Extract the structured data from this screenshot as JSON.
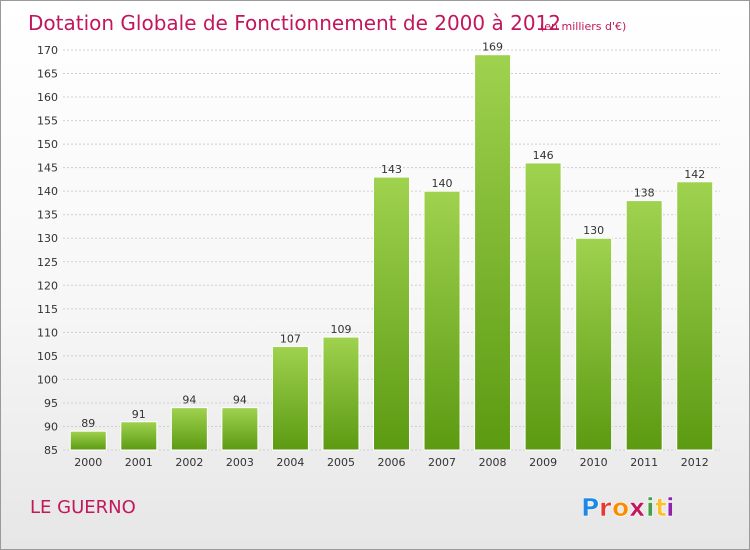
{
  "chart_data": {
    "type": "bar",
    "title": "Dotation Globale de Fonctionnement de 2000 à 2012",
    "subtitle": "(en milliers d'€)",
    "categories": [
      "2000",
      "2001",
      "2002",
      "2003",
      "2004",
      "2005",
      "2006",
      "2007",
      "2008",
      "2009",
      "2010",
      "2011",
      "2012"
    ],
    "values": [
      89,
      91,
      94,
      94,
      107,
      109,
      143,
      140,
      169,
      146,
      130,
      138,
      142
    ],
    "ylim": [
      85,
      170
    ],
    "yticks": [
      85,
      90,
      95,
      100,
      105,
      110,
      115,
      120,
      125,
      130,
      135,
      140,
      145,
      150,
      155,
      160,
      165,
      170
    ],
    "grid": true,
    "bar_color": "#7cb82f",
    "bar_color_light": "#9fd24f",
    "bar_color_dark": "#5c9a12"
  },
  "commune": "LE GUERNO",
  "logo": {
    "text": "Proxiti",
    "letter_colors": [
      "#1e88e5",
      "#e53935",
      "#fb8c00",
      "#c2185b",
      "#43a047",
      "#fbc02d",
      "#8e24aa"
    ]
  },
  "colors": {
    "title": "#c2185b",
    "grid": "#cfcfcf"
  }
}
